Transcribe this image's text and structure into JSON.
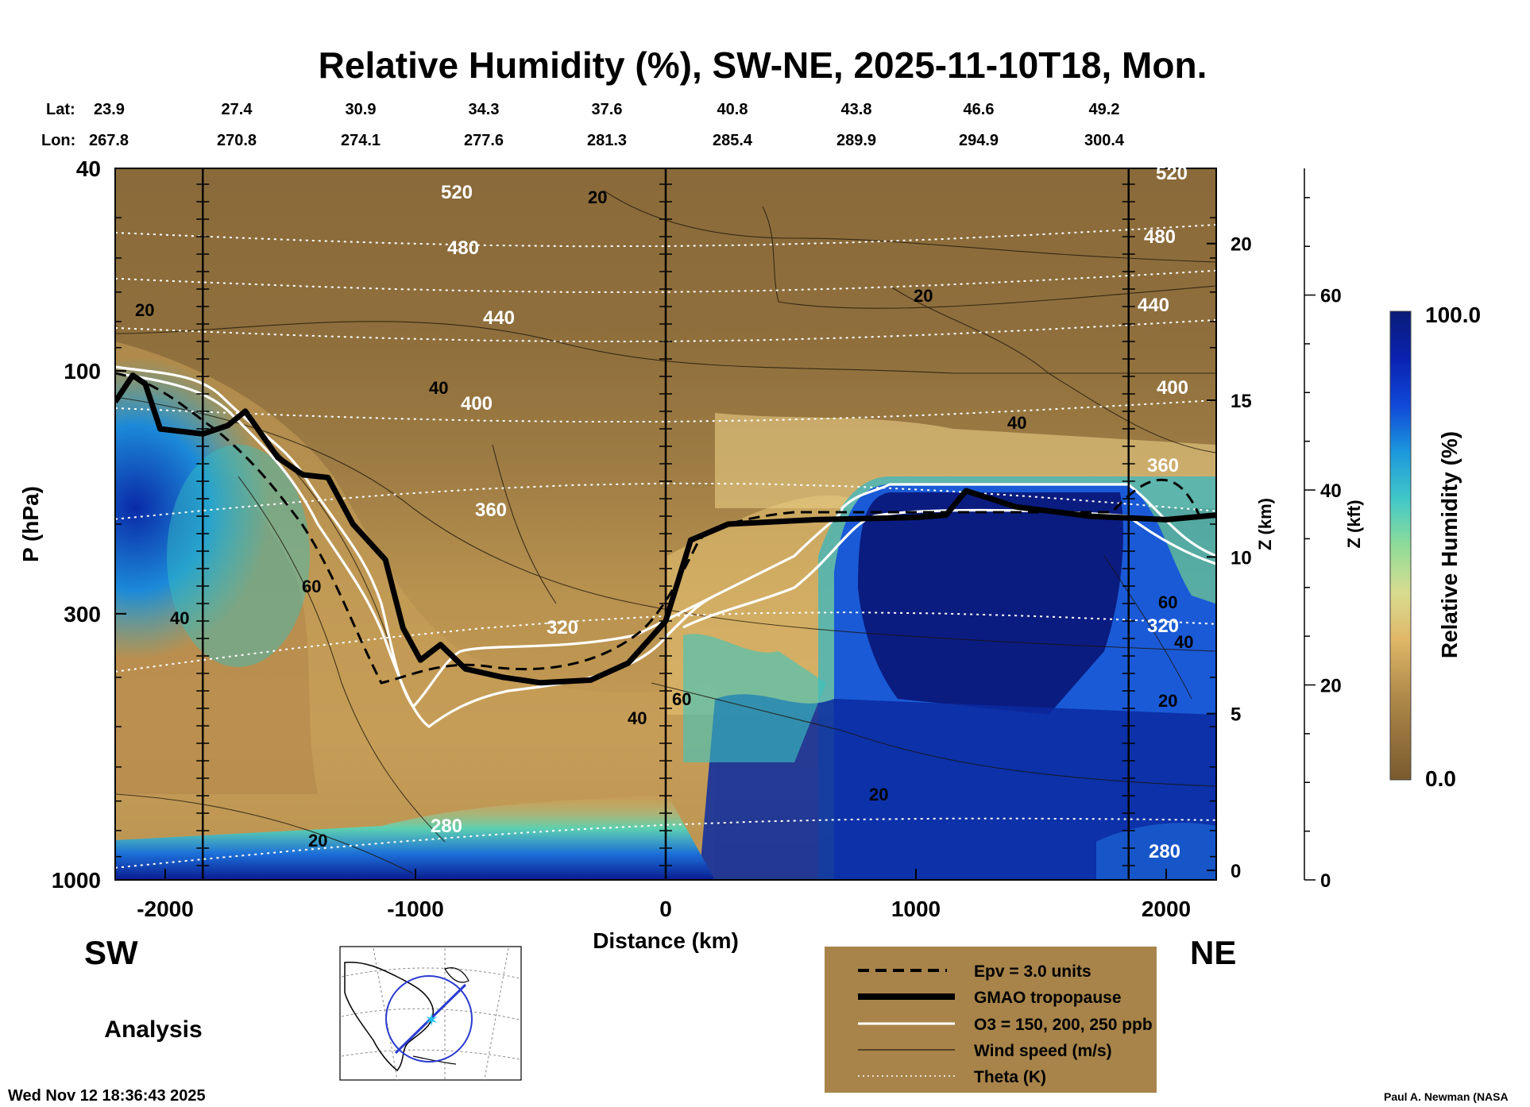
{
  "chart_data": {
    "type": "heatmap",
    "title": "Relative Humidity (%), SW-NE, 2025-11-10T18, Mon.",
    "lat_label": "Lat:",
    "lon_label": "Lon:",
    "lats": [
      "23.9",
      "27.4",
      "30.9",
      "34.3",
      "37.6",
      "40.8",
      "43.8",
      "46.6",
      "49.2"
    ],
    "lons": [
      "267.8",
      "270.8",
      "274.1",
      "277.6",
      "281.3",
      "285.4",
      "289.9",
      "294.9",
      "300.4"
    ],
    "xlabel": "Distance (km)",
    "ylabel": "P (hPa)",
    "xlim": [
      -2200,
      2200
    ],
    "ylim": [
      1000,
      40
    ],
    "y_scale": "log",
    "xticks": [
      "-2000",
      "-1000",
      "0",
      "1000",
      "2000"
    ],
    "yticks": [
      "40",
      "100",
      "300",
      "1000"
    ],
    "z_km_label": "Z (km)",
    "z_km_ticks": [
      "0",
      "5",
      "10",
      "15",
      "20"
    ],
    "z_kft_label": "Z (kft)",
    "z_kft_ticks": [
      "0",
      "20",
      "40",
      "60"
    ],
    "end_labels": {
      "left": "SW",
      "right": "NE"
    },
    "vertical_markers_km": [
      -1850,
      0,
      1850
    ],
    "colorbar": {
      "label": "Relative Humidity (%)",
      "max_label": "100.0",
      "min_label": "0.0",
      "range": [
        0,
        100
      ]
    },
    "theta_levels": [
      {
        "label": "520",
        "p": 52
      },
      {
        "label": "480",
        "p": 64
      },
      {
        "label": "440",
        "p": 80
      },
      {
        "label": "400",
        "p": 115
      },
      {
        "label": "360",
        "p": 190
      },
      {
        "label": "320",
        "p": 350
      },
      {
        "label": "280",
        "p": 850
      }
    ],
    "wind_levels": [
      "20",
      "40",
      "60"
    ],
    "tropopause_hpa": [
      {
        "x": -2200,
        "p": 115
      },
      {
        "x": -2130,
        "p": 102
      },
      {
        "x": -2080,
        "p": 106
      },
      {
        "x": -2020,
        "p": 130
      },
      {
        "x": -1850,
        "p": 133
      },
      {
        "x": -1750,
        "p": 128
      },
      {
        "x": -1680,
        "p": 120
      },
      {
        "x": -1550,
        "p": 148
      },
      {
        "x": -1450,
        "p": 160
      },
      {
        "x": -1350,
        "p": 162
      },
      {
        "x": -1250,
        "p": 200
      },
      {
        "x": -1120,
        "p": 235
      },
      {
        "x": -1050,
        "p": 320
      },
      {
        "x": -980,
        "p": 370
      },
      {
        "x": -900,
        "p": 345
      },
      {
        "x": -800,
        "p": 385
      },
      {
        "x": -650,
        "p": 400
      },
      {
        "x": -500,
        "p": 410
      },
      {
        "x": -300,
        "p": 405
      },
      {
        "x": -150,
        "p": 375
      },
      {
        "x": 0,
        "p": 310
      },
      {
        "x": 100,
        "p": 215
      },
      {
        "x": 250,
        "p": 200
      },
      {
        "x": 600,
        "p": 196
      },
      {
        "x": 1000,
        "p": 194
      },
      {
        "x": 1120,
        "p": 192
      },
      {
        "x": 1200,
        "p": 172
      },
      {
        "x": 1400,
        "p": 185
      },
      {
        "x": 1700,
        "p": 193
      },
      {
        "x": 2000,
        "p": 196
      },
      {
        "x": 2200,
        "p": 192
      }
    ],
    "legend": [
      {
        "style": "dashed-black",
        "label": "Epv = 3.0 units"
      },
      {
        "style": "thick-black",
        "label": "GMAO tropopause"
      },
      {
        "style": "white",
        "label": "O3 = 150, 200, 250 ppb"
      },
      {
        "style": "thin-black",
        "label": "Wind speed (m/s)"
      },
      {
        "style": "dotted-white",
        "label": "Theta (K)"
      }
    ],
    "grid": false
  },
  "footer": {
    "analysis_label": "Analysis",
    "timestamp": "Wed Nov 12 18:36:43 2025",
    "credit": "Paul A. Newman (NASA"
  },
  "colors": {
    "dry": "#8a6a3a",
    "mid": "#d9b060",
    "moist": "#2db3c8",
    "wet": "#0a1c80",
    "legend_bg": "#a8844a"
  }
}
